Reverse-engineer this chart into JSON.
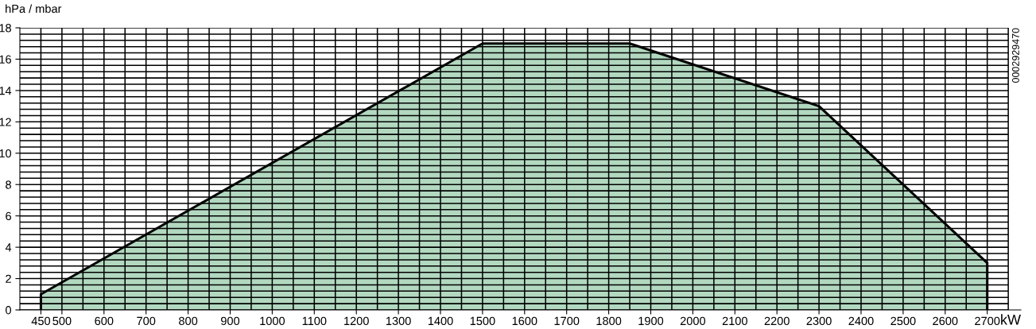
{
  "chart_data": {
    "type": "area",
    "xlabel": "kW",
    "ylabel": "hPa / mbar",
    "annotations": [
      "0002929470"
    ],
    "x": [
      450,
      450,
      1500,
      1850,
      2300,
      2700,
      2700
    ],
    "series": [
      {
        "color": "#b2d8c0",
        "values": [
          0,
          1,
          17,
          17,
          13,
          3,
          0
        ]
      }
    ],
    "xlim": [
      400,
      2780
    ],
    "ylim": [
      0,
      18
    ],
    "xticks": [
      450,
      500,
      600,
      700,
      800,
      900,
      1000,
      1100,
      1200,
      1300,
      1400,
      1500,
      1600,
      1700,
      1800,
      1900,
      2000,
      2100,
      2200,
      2300,
      2400,
      2500,
      2600,
      2700
    ],
    "yticks": [
      0,
      2,
      4,
      6,
      8,
      10,
      12,
      14,
      16,
      18
    ],
    "grid": true
  }
}
